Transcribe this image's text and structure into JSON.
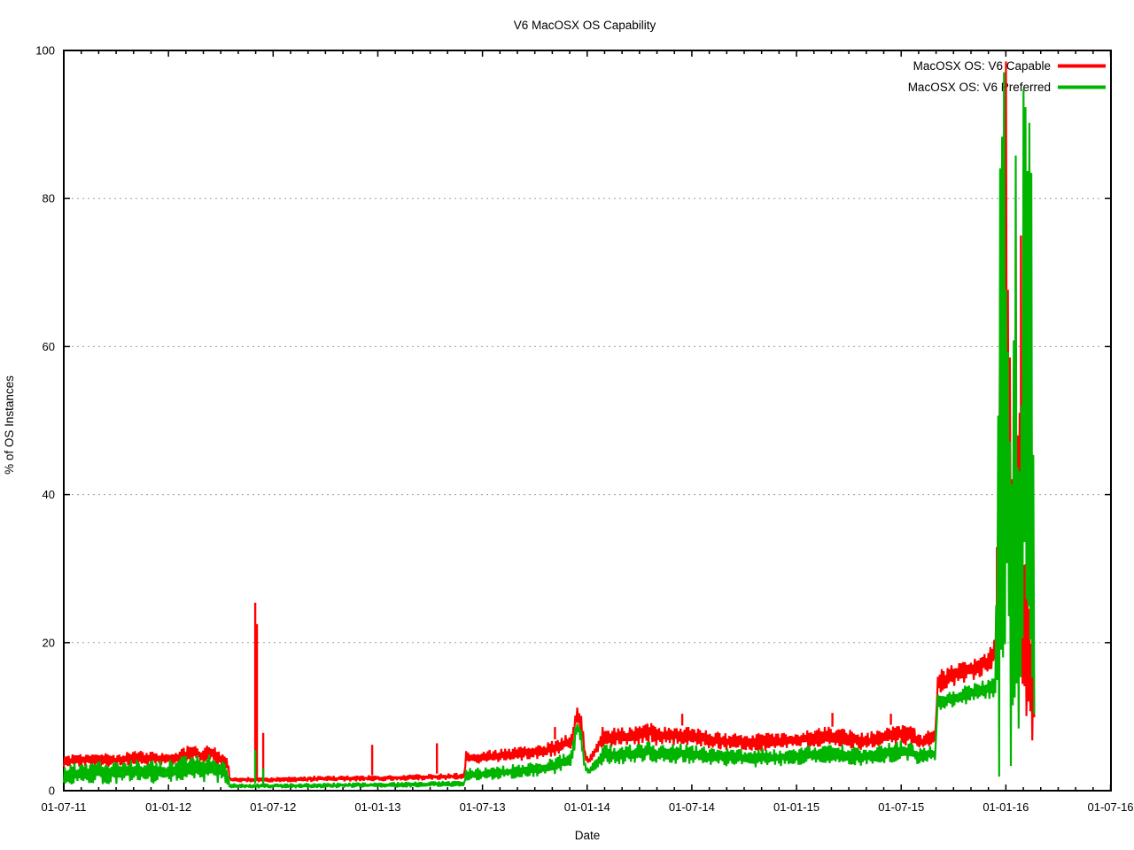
{
  "chart_data": {
    "type": "line",
    "title": "V6 MacOSX OS Capability",
    "xlabel": "Date",
    "ylabel": "% of OS Instances",
    "x_axis": {
      "tick_labels": [
        "01-07-11",
        "01-01-12",
        "01-07-12",
        "01-01-13",
        "01-07-13",
        "01-01-14",
        "01-07-14",
        "01-01-15",
        "01-07-15",
        "01-01-16",
        "01-07-16"
      ],
      "major_tick_interval_days": 182.625,
      "minor_tick_interval_days": 30.4375,
      "domain_days": [
        0,
        1827
      ]
    },
    "y_axis": {
      "ticks": [
        0,
        20,
        40,
        60,
        80,
        100
      ],
      "range": [
        0,
        100
      ],
      "grid_values": [
        20,
        40,
        60,
        80
      ]
    },
    "colors": {
      "capable": "#ff0000",
      "preferred": "#00b400",
      "grid": "#9e9e9e",
      "border": "#000000",
      "background": "#ffffff",
      "text": "#000000"
    },
    "legend": {
      "position": "top-right-inside",
      "items": [
        "MacOSX OS: V6 Capable",
        "MacOSX OS: V6 Preferred"
      ]
    },
    "series": [
      {
        "id": "v6-capable",
        "name": "MacOSX OS: V6 Capable",
        "color": "#ff0000",
        "envelope": [
          [
            0,
            4.8,
            3.0
          ],
          [
            30,
            5.0,
            3.2
          ],
          [
            60,
            5.2,
            3.3
          ],
          [
            90,
            5.0,
            3.2
          ],
          [
            125,
            5.6,
            3.5
          ],
          [
            150,
            5.3,
            3.4
          ],
          [
            180,
            5.2,
            3.4
          ],
          [
            200,
            5.6,
            3.6
          ],
          [
            225,
            6.4,
            4.0
          ],
          [
            240,
            5.8,
            3.7
          ],
          [
            258,
            6.3,
            3.9
          ],
          [
            275,
            5.2,
            3.3
          ],
          [
            286,
            4.4,
            2.6
          ],
          [
            290,
            1.9,
            1.2
          ],
          [
            340,
            1.8,
            1.1
          ],
          [
            440,
            2.0,
            1.2
          ],
          [
            560,
            2.1,
            1.3
          ],
          [
            690,
            2.4,
            1.5
          ],
          [
            699,
            2.4,
            1.5
          ],
          [
            701,
            5.4,
            3.6
          ],
          [
            740,
            5.5,
            3.7
          ],
          [
            800,
            6.0,
            4.0
          ],
          [
            845,
            6.6,
            4.4
          ],
          [
            870,
            7.3,
            5.0
          ],
          [
            886,
            8.0,
            5.6
          ],
          [
            893,
            11.0,
            8.2
          ],
          [
            897,
            11.8,
            9.2
          ],
          [
            903,
            10.4,
            7.6
          ],
          [
            909,
            6.0,
            4.2
          ],
          [
            914,
            4.4,
            3.4
          ],
          [
            922,
            5.2,
            3.8
          ],
          [
            940,
            8.7,
            5.8
          ],
          [
            970,
            8.6,
            6.0
          ],
          [
            1010,
            8.8,
            6.2
          ],
          [
            1022,
            9.6,
            6.6
          ],
          [
            1035,
            8.6,
            6.0
          ],
          [
            1080,
            8.8,
            6.2
          ],
          [
            1120,
            8.2,
            5.8
          ],
          [
            1160,
            7.8,
            5.4
          ],
          [
            1200,
            7.6,
            5.3
          ],
          [
            1218,
            7.9,
            5.2
          ],
          [
            1250,
            7.8,
            5.5
          ],
          [
            1290,
            8.2,
            5.7
          ],
          [
            1330,
            8.8,
            6.0
          ],
          [
            1360,
            8.4,
            5.8
          ],
          [
            1400,
            7.8,
            5.4
          ],
          [
            1430,
            8.6,
            5.9
          ],
          [
            1460,
            9.3,
            6.2
          ],
          [
            1480,
            8.8,
            6.0
          ],
          [
            1497,
            7.6,
            5.4
          ],
          [
            1512,
            8.6,
            6.0
          ],
          [
            1521,
            8.2,
            5.8
          ],
          [
            1524,
            16.2,
            12.9
          ],
          [
            1555,
            17.2,
            14.2
          ],
          [
            1590,
            18.2,
            15.0
          ],
          [
            1615,
            19.3,
            15.8
          ],
          [
            1626,
            20.8,
            16.5
          ],
          [
            1630,
            45,
            18
          ],
          [
            1636,
            100,
            30
          ],
          [
            1646,
            100,
            35
          ],
          [
            1649,
            62,
            20
          ],
          [
            1653,
            58,
            15
          ],
          [
            1658,
            45,
            12
          ],
          [
            1663,
            50,
            14
          ],
          [
            1668,
            52,
            14
          ],
          [
            1672,
            40,
            10
          ],
          [
            1680,
            30,
            7
          ],
          [
            1688,
            26,
            6
          ],
          [
            1694,
            22,
            5
          ]
        ],
        "spikes": [
          [
            334,
            25.4
          ],
          [
            337,
            22.5
          ],
          [
            348,
            7.8
          ],
          [
            538,
            6.2
          ],
          [
            651,
            6.4
          ],
          [
            857,
            8.6
          ],
          [
            1079,
            10.4
          ],
          [
            1341,
            10.5
          ],
          [
            1443,
            10.4
          ],
          [
            1628,
            21.3
          ],
          [
            1670,
            75
          ]
        ]
      },
      {
        "id": "v6-preferred",
        "name": "MacOSX OS: V6 Preferred",
        "color": "#00b400",
        "envelope": [
          [
            0,
            3.6,
            0.7
          ],
          [
            30,
            3.9,
            0.8
          ],
          [
            60,
            4.1,
            0.9
          ],
          [
            90,
            3.9,
            0.8
          ],
          [
            125,
            4.4,
            1.0
          ],
          [
            150,
            4.2,
            0.9
          ],
          [
            180,
            4.1,
            0.9
          ],
          [
            200,
            4.5,
            1.0
          ],
          [
            225,
            5.3,
            1.2
          ],
          [
            240,
            4.8,
            1.1
          ],
          [
            258,
            5.2,
            1.1
          ],
          [
            275,
            4.2,
            1.0
          ],
          [
            286,
            3.4,
            0.8
          ],
          [
            290,
            1.0,
            0.35
          ],
          [
            340,
            0.95,
            0.3
          ],
          [
            440,
            1.05,
            0.35
          ],
          [
            560,
            1.15,
            0.4
          ],
          [
            690,
            1.35,
            0.5
          ],
          [
            699,
            1.35,
            0.5
          ],
          [
            701,
            3.1,
            1.3
          ],
          [
            740,
            3.2,
            1.4
          ],
          [
            800,
            3.7,
            1.7
          ],
          [
            845,
            4.3,
            2.0
          ],
          [
            870,
            5.0,
            2.5
          ],
          [
            886,
            5.6,
            3.0
          ],
          [
            893,
            8.8,
            6.5
          ],
          [
            897,
            9.6,
            7.6
          ],
          [
            903,
            8.2,
            6.0
          ],
          [
            909,
            4.0,
            2.6
          ],
          [
            914,
            3.0,
            2.1
          ],
          [
            922,
            3.6,
            2.4
          ],
          [
            940,
            6.3,
            3.4
          ],
          [
            970,
            6.2,
            3.5
          ],
          [
            1010,
            6.4,
            3.7
          ],
          [
            1022,
            7.2,
            4.0
          ],
          [
            1035,
            6.2,
            3.5
          ],
          [
            1080,
            6.4,
            3.7
          ],
          [
            1120,
            6.0,
            3.4
          ],
          [
            1160,
            5.7,
            3.2
          ],
          [
            1200,
            5.5,
            3.2
          ],
          [
            1218,
            5.8,
            3.1
          ],
          [
            1250,
            5.7,
            3.3
          ],
          [
            1290,
            6.0,
            3.5
          ],
          [
            1330,
            6.5,
            3.7
          ],
          [
            1360,
            6.2,
            3.6
          ],
          [
            1400,
            5.7,
            3.3
          ],
          [
            1430,
            6.3,
            3.6
          ],
          [
            1460,
            6.9,
            3.9
          ],
          [
            1480,
            6.5,
            3.7
          ],
          [
            1497,
            5.6,
            3.3
          ],
          [
            1512,
            6.4,
            3.7
          ],
          [
            1521,
            6.0,
            3.6
          ],
          [
            1524,
            13.2,
            10.8
          ],
          [
            1555,
            13.8,
            11.3
          ],
          [
            1590,
            14.6,
            11.9
          ],
          [
            1615,
            15.3,
            12.4
          ],
          [
            1626,
            15.6,
            12.6
          ],
          [
            1629,
            50,
            0
          ],
          [
            1634,
            100,
            0
          ],
          [
            1646,
            100,
            0
          ],
          [
            1650,
            62,
            0
          ],
          [
            1656,
            58,
            0
          ],
          [
            1659,
            100,
            0
          ],
          [
            1661,
            100,
            0
          ],
          [
            1663,
            55,
            0
          ],
          [
            1669,
            58,
            0
          ],
          [
            1675,
            100,
            0
          ],
          [
            1689,
            100,
            0
          ],
          [
            1692,
            60,
            0
          ],
          [
            1694,
            25,
            0
          ]
        ],
        "spikes": [
          [
            334,
            5.5
          ],
          [
            348,
            3.0
          ]
        ]
      }
    ]
  }
}
